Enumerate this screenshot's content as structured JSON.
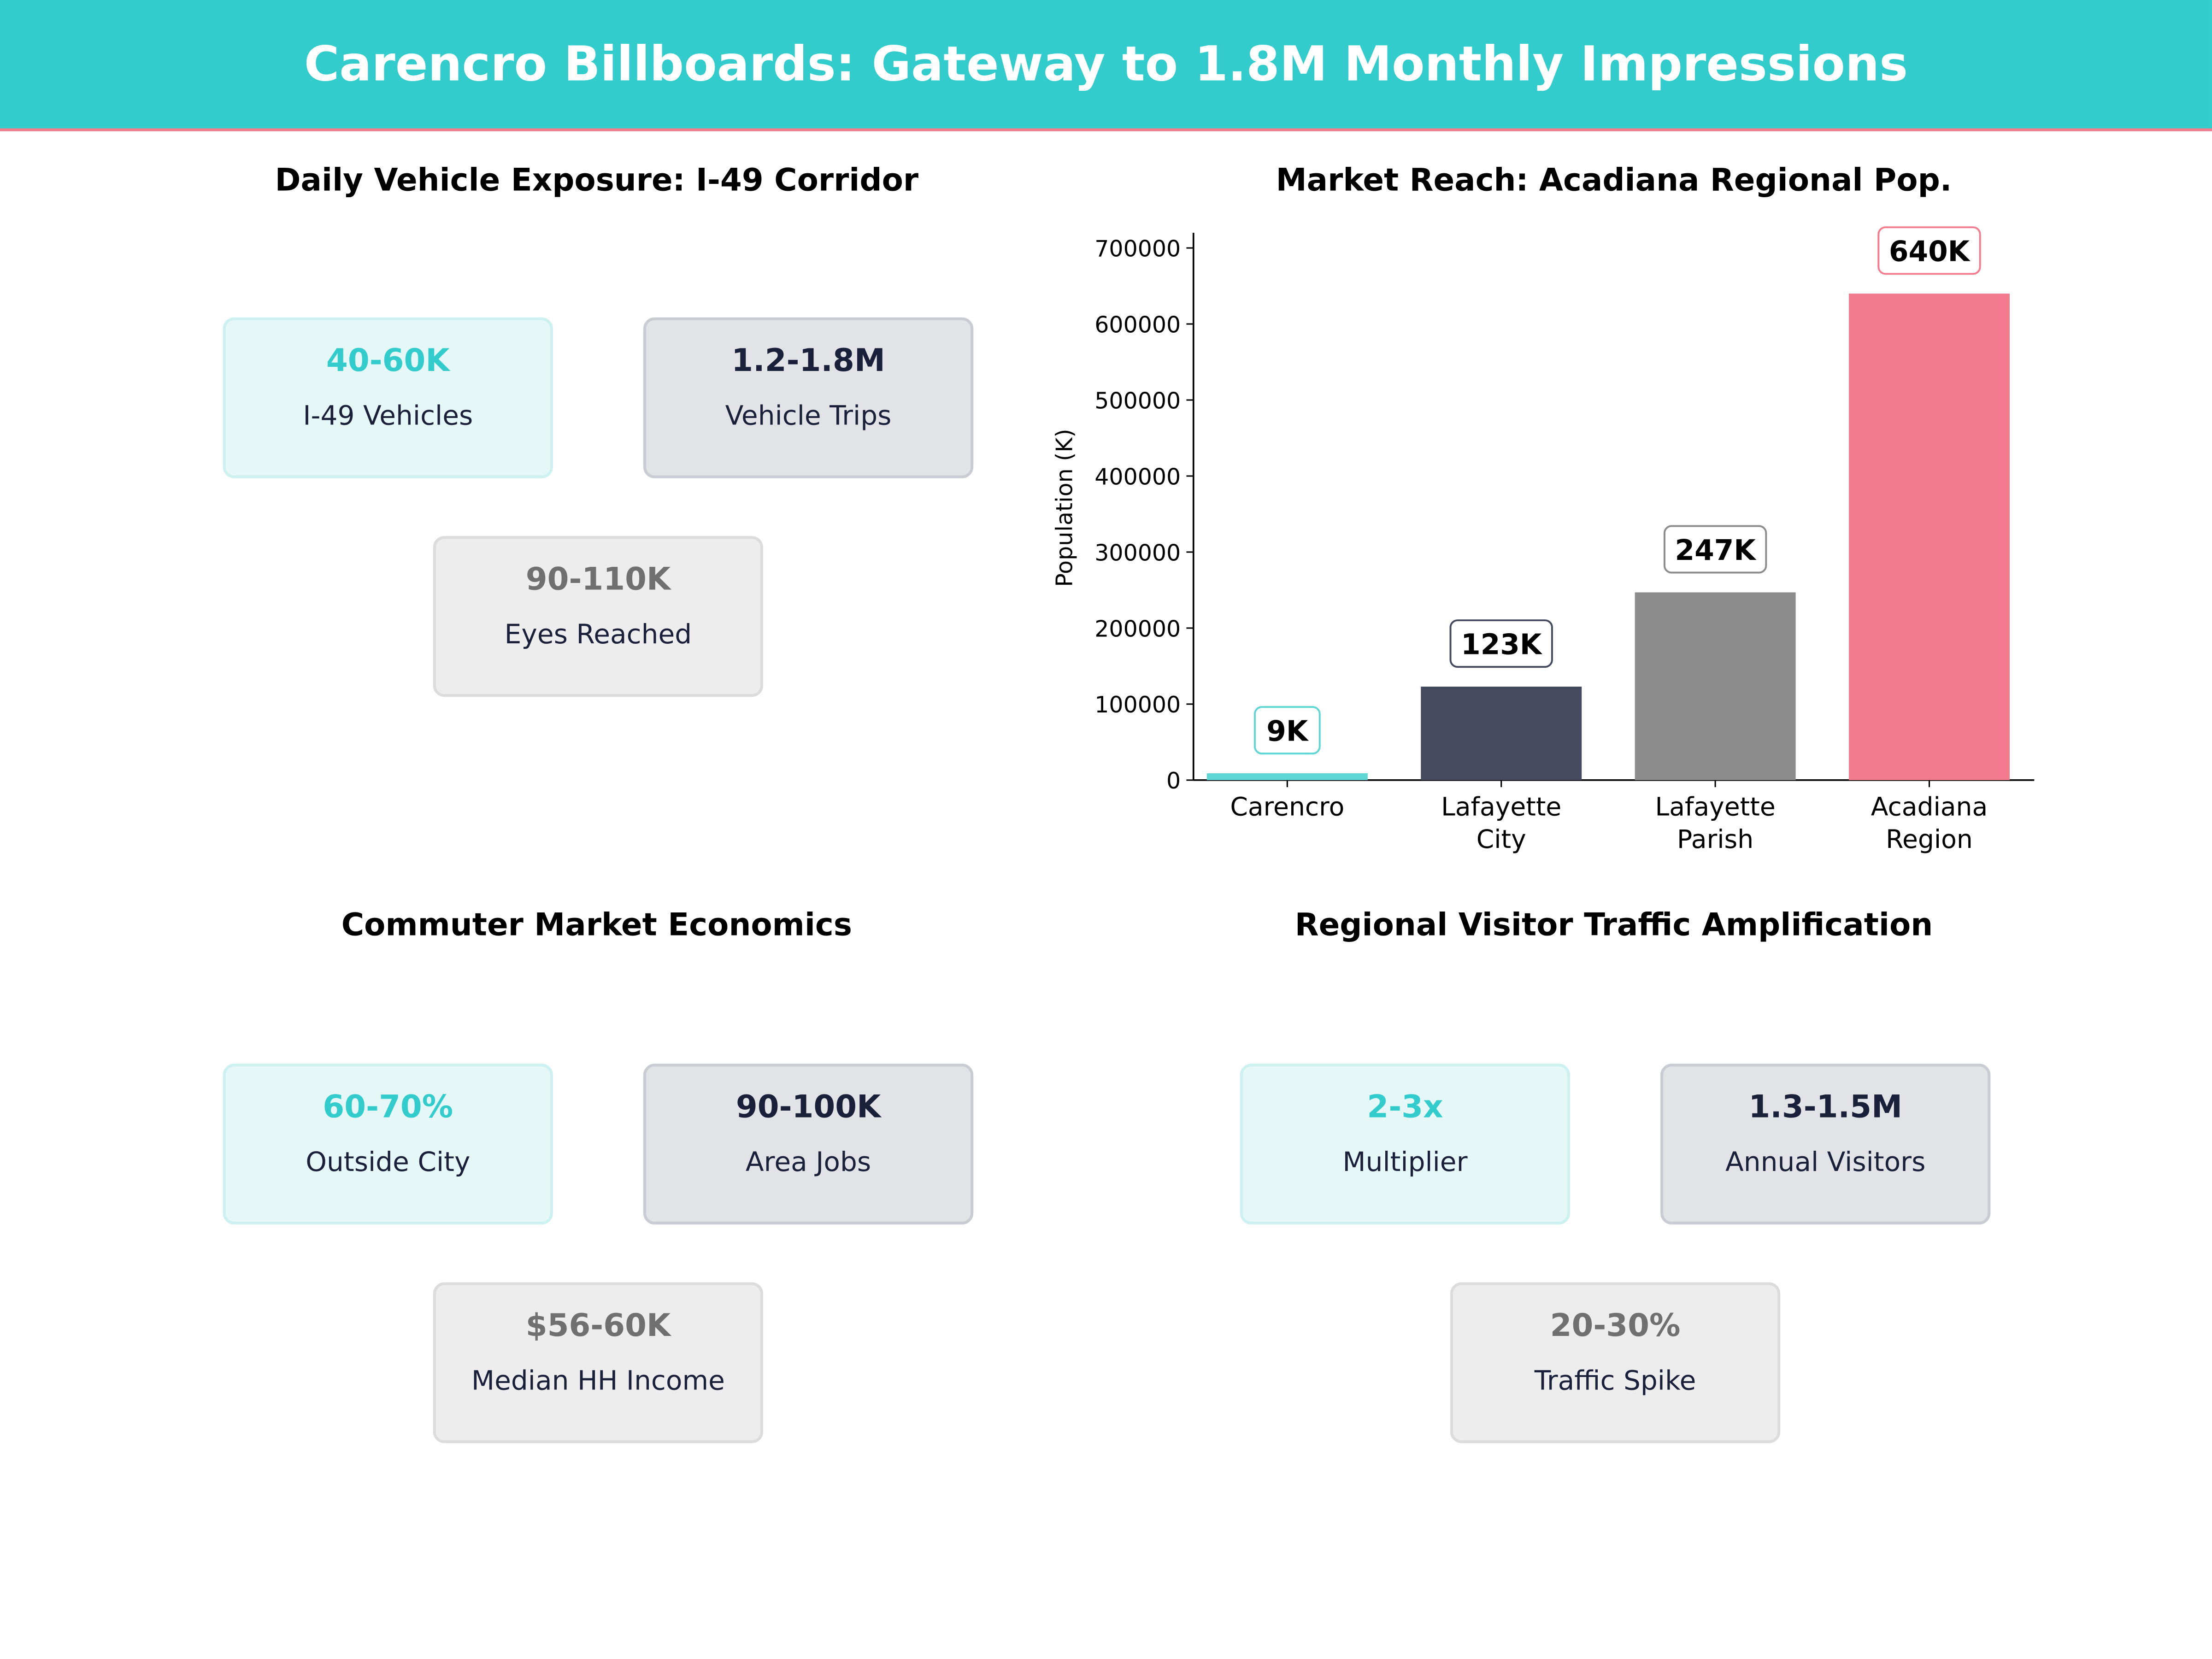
{
  "title": "Carencro Billboards: Gateway to 1.8M Monthly Impressions",
  "colors": {
    "teal": "#33CCCC",
    "navy": "#1A1F3A",
    "gray": "#707070",
    "coral": "#F47C8E"
  },
  "panels": {
    "exposure": {
      "title": "Daily Vehicle Exposure: I-49 Corridor",
      "cards": [
        {
          "value": "40-60K",
          "label": "I-49 Vehicles",
          "style": "teal"
        },
        {
          "value": "1.2-1.8M",
          "label": "Vehicle Trips",
          "style": "navy"
        },
        {
          "value": "90-110K",
          "label": "Eyes Reached",
          "style": "gray"
        }
      ]
    },
    "economics": {
      "title": "Commuter Market Economics",
      "cards": [
        {
          "value": "60-70%",
          "label": "Outside City",
          "style": "teal"
        },
        {
          "value": "90-100K",
          "label": "Area Jobs",
          "style": "navy"
        },
        {
          "value": "$56-60K",
          "label": "Median HH Income",
          "style": "gray"
        }
      ]
    },
    "visitors": {
      "title": "Regional Visitor Traffic Amplification",
      "cards": [
        {
          "value": "2-3x",
          "label": "Multiplier",
          "style": "teal"
        },
        {
          "value": "1.3-1.5M",
          "label": "Annual Visitors",
          "style": "navy"
        },
        {
          "value": "20-30%",
          "label": "Traffic Spike",
          "style": "gray"
        }
      ]
    }
  },
  "chart_data": {
    "type": "bar",
    "title": "Market Reach: Acadiana Regional Pop.",
    "categories": [
      "Carencro",
      "Lafayette\nCity",
      "Lafayette\nParish",
      "Acadiana\nRegion"
    ],
    "values": [
      9000,
      123000,
      247000,
      640000
    ],
    "data_labels": [
      "9K",
      "123K",
      "247K",
      "640K"
    ],
    "colors": [
      "#5DD6D4",
      "#464A5E",
      "#8C8C8C",
      "#F47C8E"
    ],
    "label_border_colors": [
      "#5DD6D4",
      "#464A5E",
      "#8C8C8C",
      "#F47C8E"
    ],
    "ylabel": "Population (K)",
    "xlabel": "",
    "ylim": [
      0,
      720000
    ],
    "yticks": [
      0,
      100000,
      200000,
      300000,
      400000,
      500000,
      600000,
      700000
    ],
    "grid": false
  }
}
